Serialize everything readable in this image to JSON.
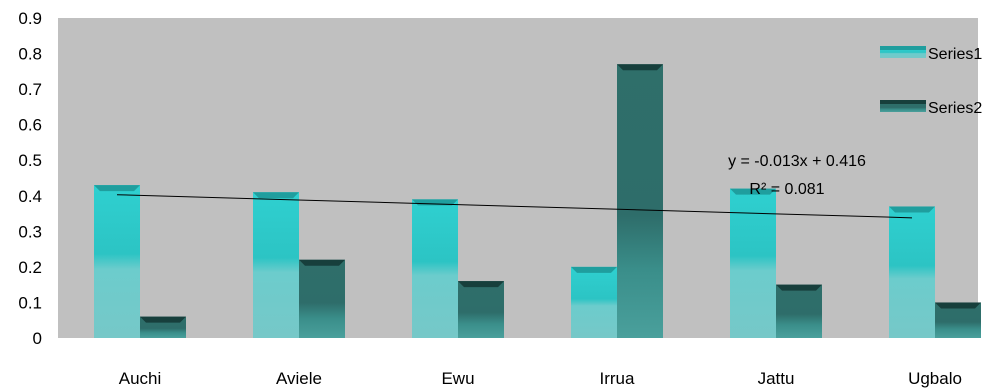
{
  "chart_data": {
    "type": "bar",
    "categories": [
      "Auchi",
      "Aviele",
      "Ewu",
      "Irrua",
      "Jattu",
      "Ugbalo"
    ],
    "series": [
      {
        "name": "Series1",
        "values": [
          0.43,
          0.41,
          0.39,
          0.2,
          0.42,
          0.37
        ],
        "color": "#2ec8c8"
      },
      {
        "name": "Series2",
        "values": [
          0.06,
          0.22,
          0.16,
          0.77,
          0.15,
          0.1
        ],
        "color": "#2a6e6a"
      }
    ],
    "yticks": [
      "0",
      "0.1",
      "0.2",
      "0.3",
      "0.4",
      "0.5",
      "0.6",
      "0.7",
      "0.8",
      "0.9"
    ],
    "ylim": [
      0,
      0.9
    ],
    "grid": false,
    "legend_position": "right",
    "background_color": "#c0c0c0",
    "trendline": {
      "series": "Series1",
      "slope": -0.013,
      "intercept": 0.416,
      "equation": "y = -0.013x + 0.416",
      "r_squared": "R² = 0.081"
    }
  }
}
